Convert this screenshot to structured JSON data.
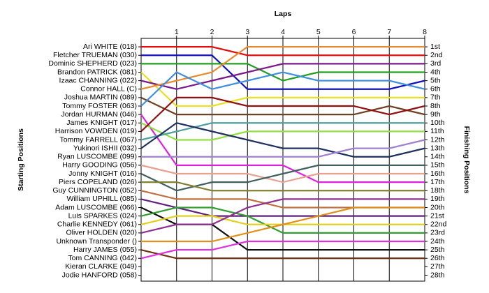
{
  "chart_data": {
    "type": "line",
    "x_label": "Laps",
    "y_label": "Starting Positions",
    "y2_label": "Finishing Positions",
    "xlim": [
      0,
      8
    ],
    "xticks": [
      1,
      2,
      3,
      4,
      5,
      6,
      7,
      8
    ],
    "ylim": [
      0,
      28.7
    ],
    "inverted": true,
    "grid": true,
    "finishing_positions": [
      "1st",
      "2nd",
      "3rd",
      "4th",
      "5th",
      "6th",
      "7th",
      "8th",
      "9th",
      "10th",
      "11th",
      "12th",
      "13th",
      "14th",
      "15th",
      "16th",
      "17th",
      "18th",
      "19th",
      "20th",
      "21st",
      "22nd",
      "23rd",
      "24th",
      "25th",
      "26th",
      "27th",
      "28th"
    ],
    "series": [
      {
        "name": "Ari WHITE (018)",
        "color": "#e01010",
        "values": [
          1,
          1,
          1,
          2,
          2,
          2,
          2,
          2,
          2
        ]
      },
      {
        "name": "Fletcher TRUEMAN (030)",
        "color": "#1010c0",
        "values": [
          2,
          2,
          2,
          6,
          6,
          6,
          6,
          6,
          5
        ]
      },
      {
        "name": "Dominic SHEPHERD (023)",
        "color": "#20a020",
        "values": [
          3,
          3,
          3,
          3,
          5,
          4,
          4,
          4,
          4
        ]
      },
      {
        "name": "Brandon PATRICK (081)",
        "color": "#e8e020",
        "values": [
          4,
          8,
          8,
          7,
          7,
          7,
          7,
          7,
          7
        ]
      },
      {
        "name": "Izaac CHANNING (022)",
        "color": "#7a1a8a",
        "values": [
          5,
          6,
          5,
          4,
          3,
          3,
          3,
          3,
          3
        ]
      },
      {
        "name": "Connor HALL (C)",
        "color": "#e88a30",
        "values": [
          6,
          5,
          4,
          1,
          1,
          1,
          1,
          1,
          1
        ]
      },
      {
        "name": "Joshua MARTIN (089)",
        "color": "#704020",
        "values": [
          7,
          9,
          9,
          9,
          9,
          9,
          9,
          8,
          9
        ]
      },
      {
        "name": "Tommy FOSTER (063)",
        "color": "#4090e0",
        "values": [
          8,
          4,
          6,
          5,
          4,
          5,
          5,
          5,
          6
        ]
      },
      {
        "name": "Jordan HURMAN (046)",
        "color": "#e020e0",
        "values": [
          9,
          15,
          15,
          15,
          15,
          17,
          17,
          17,
          17
        ]
      },
      {
        "name": "James KNIGHT (017)",
        "color": "#90e040",
        "values": [
          10,
          12,
          12,
          11,
          11,
          11,
          11,
          11,
          11
        ]
      },
      {
        "name": "Harrison VOWDEN (019)",
        "color": "#901010",
        "values": [
          11,
          7,
          7,
          8,
          8,
          8,
          8,
          9,
          8
        ]
      },
      {
        "name": "Tommy FARRELL (067)",
        "color": "#50a0a0",
        "values": [
          12,
          11,
          10,
          10,
          10,
          10,
          10,
          10,
          10
        ]
      },
      {
        "name": "Yukinori ISHII (032)",
        "color": "#203060",
        "values": [
          13,
          10,
          11,
          12,
          13,
          13,
          14,
          14,
          13
        ]
      },
      {
        "name": "Ryan LUSCOMBE (099)",
        "color": "#a080d0",
        "values": [
          14,
          14,
          14,
          14,
          14,
          14,
          13,
          13,
          12
        ]
      },
      {
        "name": "Harry GOODING (056)",
        "color": "#e8a090",
        "values": [
          15,
          16,
          16,
          16,
          17,
          16,
          16,
          16,
          16
        ]
      },
      {
        "name": "Jonny KNIGHT (016)",
        "color": "#406060",
        "values": [
          16,
          18,
          17,
          17,
          16,
          15,
          15,
          15,
          15
        ]
      },
      {
        "name": "Piers COPELAND (026)",
        "color": "#808030",
        "values": [
          17,
          17,
          18,
          18,
          18,
          18,
          18,
          18,
          18
        ]
      },
      {
        "name": "Guy CUNNINGTON (052)",
        "color": "#c07040",
        "values": [
          18,
          19,
          19,
          19,
          20,
          20,
          20,
          20,
          20
        ]
      },
      {
        "name": "William UPHILL (085)",
        "color": "#602080",
        "values": [
          19,
          20,
          21,
          21,
          21,
          21,
          21,
          21,
          21
        ]
      },
      {
        "name": "Adam LUSCOMBE (066)",
        "color": "#101010",
        "values": [
          20,
          22,
          22,
          25,
          25,
          25,
          25,
          25,
          25
        ]
      },
      {
        "name": "Luis SPARKES (024)",
        "color": "#30a030",
        "values": [
          21,
          20,
          20,
          21,
          23,
          23,
          23,
          23,
          23
        ]
      },
      {
        "name": "Charlie KENNEDY (061)",
        "color": "#e0d020",
        "values": [
          22,
          21,
          21,
          22,
          22,
          22,
          22,
          22,
          22
        ]
      },
      {
        "name": "Oliver HOLDEN (020)",
        "color": "#903090",
        "values": [
          23,
          22,
          22,
          20,
          19,
          19,
          19,
          19,
          19
        ]
      },
      {
        "name": "Unknown Transponder ()",
        "color": "#e0901a",
        "values": [
          24,
          24,
          24,
          23,
          22,
          21,
          20,
          20,
          20
        ]
      },
      {
        "name": "Harry JAMES (055)",
        "color": "#703010",
        "values": [
          25,
          26,
          26,
          26,
          26,
          26,
          26,
          26,
          26
        ]
      },
      {
        "name": "Tom CANNING (042)",
        "color": "#e030e0",
        "values": [
          26,
          25,
          25,
          24,
          24,
          24,
          24,
          24,
          24
        ]
      },
      {
        "name": "Kieran CLARKE (049)",
        "color": "#808080",
        "values": [
          null,
          null,
          null,
          null,
          null,
          null,
          null,
          null,
          null
        ]
      },
      {
        "name": "Jodie HANFORD (058)",
        "color": "#808080",
        "values": [
          null,
          null,
          null,
          null,
          null,
          null,
          null,
          null,
          null
        ]
      }
    ]
  }
}
